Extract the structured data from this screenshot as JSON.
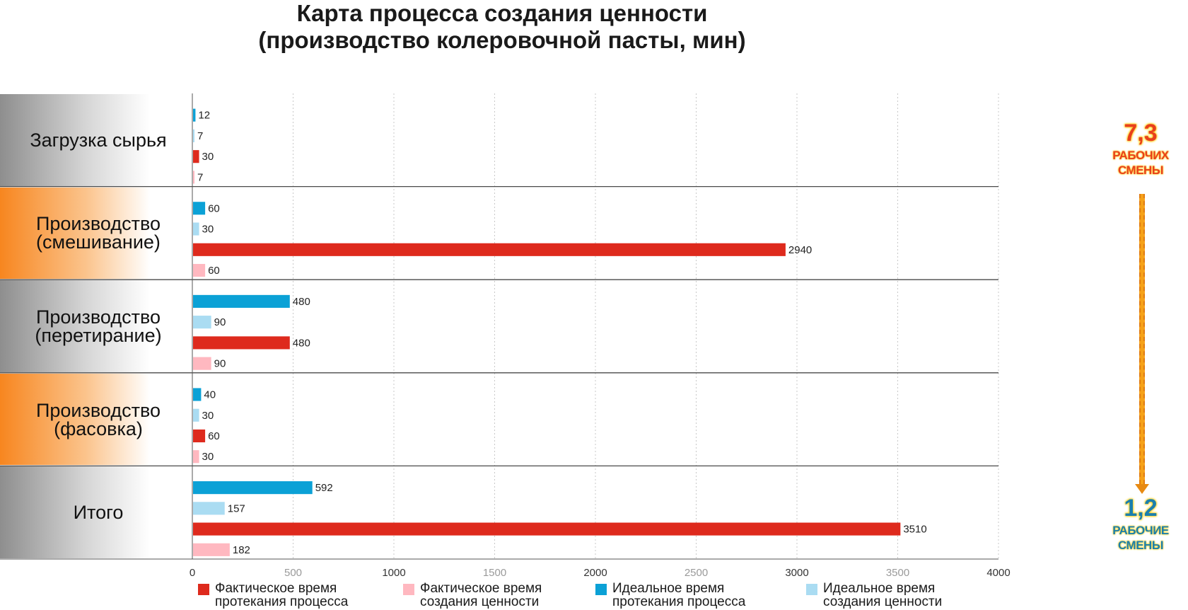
{
  "colors": {
    "actual_process": "#de2a1d",
    "actual_value": "#ffb8c0",
    "ideal_process": "#0ba1d6",
    "ideal_value": "#aadcf2",
    "accent_orange": "#f7861f"
  },
  "chart_data": {
    "type": "bar",
    "orientation": "horizontal",
    "title": "Карта процесса создания ценности\n(производство колеровочной пасты, мин)",
    "title_lines": [
      "Карта процесса создания ценности",
      "(производство колеровочной пасты, мин)"
    ],
    "categories": [
      "Загрузка сырья",
      "Производство\n(смешивание)",
      "Производство\n(перетирание)",
      "Производство\n(фасовка)",
      "Итого"
    ],
    "category_styles": [
      "gray",
      "orange",
      "gray",
      "orange",
      "gray"
    ],
    "series": [
      {
        "name": "Идеальное время протекания процесса",
        "legend_label": "Идеальное время\nпротекания процесса",
        "color": "#0ba1d6",
        "values": [
          12,
          60,
          480,
          40,
          592
        ]
      },
      {
        "name": "Идеальное время создания ценности",
        "legend_label": "Идеальное время\nсоздания ценности",
        "color": "#aadcf2",
        "values": [
          7,
          30,
          90,
          30,
          157
        ]
      },
      {
        "name": "Фактическое время протекания процесса",
        "legend_label": "Фактическое время\nпротекания процесса",
        "color": "#de2a1d",
        "values": [
          30,
          2940,
          480,
          60,
          3510
        ]
      },
      {
        "name": "Фактическое время создания ценности",
        "legend_label": "Фактическое время\nсоздания ценности",
        "color": "#ffb8c0",
        "values": [
          7,
          60,
          90,
          30,
          182
        ]
      }
    ],
    "legend_order": [
      2,
      3,
      0,
      1
    ],
    "xlim": [
      0,
      4000
    ],
    "xticks": [
      "0",
      "500",
      "1000",
      "1500",
      "2000",
      "2500",
      "3000",
      "3500",
      "4000"
    ],
    "xtick_values": [
      0,
      500,
      1000,
      1500,
      2000,
      2500,
      3000,
      3500,
      4000
    ],
    "grid": "vertical dotted",
    "legend_position": "bottom",
    "data_labels": true
  },
  "annotations": {
    "top": {
      "value": "7,3",
      "label": "РАБОЧИХ\nСМЕНЫ"
    },
    "bottom": {
      "value": "1,2",
      "label": "РАБОЧИЕ\nСМЕНЫ"
    },
    "arrow": "down-arrow-icon"
  }
}
